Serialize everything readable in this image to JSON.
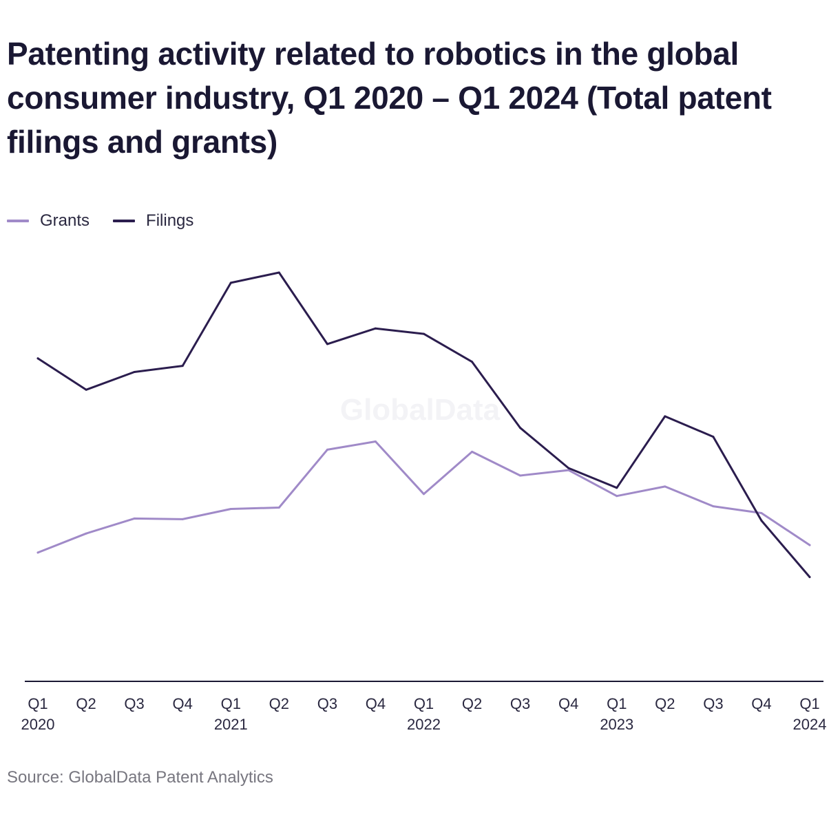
{
  "chart_data": {
    "type": "line",
    "title": "Patenting activity related to robotics in the global consumer industry, Q1 2020 – Q1 2024 (Total patent filings and grants)",
    "categories": [
      "Q1 2020",
      "Q2 2020",
      "Q3 2020",
      "Q4 2020",
      "Q1 2021",
      "Q2 2021",
      "Q3 2021",
      "Q4 2021",
      "Q1 2022",
      "Q2 2022",
      "Q3 2022",
      "Q4 2022",
      "Q1 2023",
      "Q2 2023",
      "Q3 2023",
      "Q4 2023",
      "Q1 2024"
    ],
    "tick_labels": [
      {
        "quarter": "Q1",
        "year": "2020"
      },
      {
        "quarter": "Q2",
        "year": ""
      },
      {
        "quarter": "Q3",
        "year": ""
      },
      {
        "quarter": "Q4",
        "year": ""
      },
      {
        "quarter": "Q1",
        "year": "2021"
      },
      {
        "quarter": "Q2",
        "year": ""
      },
      {
        "quarter": "Q3",
        "year": ""
      },
      {
        "quarter": "Q4",
        "year": ""
      },
      {
        "quarter": "Q1",
        "year": "2022"
      },
      {
        "quarter": "Q2",
        "year": ""
      },
      {
        "quarter": "Q3",
        "year": ""
      },
      {
        "quarter": "Q4",
        "year": ""
      },
      {
        "quarter": "Q1",
        "year": "2023"
      },
      {
        "quarter": "Q2",
        "year": ""
      },
      {
        "quarter": "Q3",
        "year": ""
      },
      {
        "quarter": "Q4",
        "year": ""
      },
      {
        "quarter": "Q1",
        "year": "2024"
      }
    ],
    "series": [
      {
        "name": "Grants",
        "color": "#a08ac8",
        "values": [
          189,
          217,
          239,
          238,
          253,
          255,
          340,
          352,
          275,
          337,
          302,
          310,
          272,
          286,
          257,
          247,
          200
        ]
      },
      {
        "name": "Filings",
        "color": "#2b1d4e",
        "values": [
          474,
          428,
          454,
          463,
          585,
          600,
          495,
          518,
          510,
          469,
          372,
          313,
          284,
          389,
          359,
          236,
          153
        ]
      }
    ],
    "ylim": [
      0,
      1000
    ],
    "grid": false,
    "y_axis_labels": false,
    "legend_position": "top-left",
    "watermark": "GlobalData"
  },
  "legend": [
    {
      "label": "Grants",
      "color": "#a08ac8"
    },
    {
      "label": "Filings",
      "color": "#2b1d4e"
    }
  ],
  "source": "Source: GlobalData Patent Analytics"
}
